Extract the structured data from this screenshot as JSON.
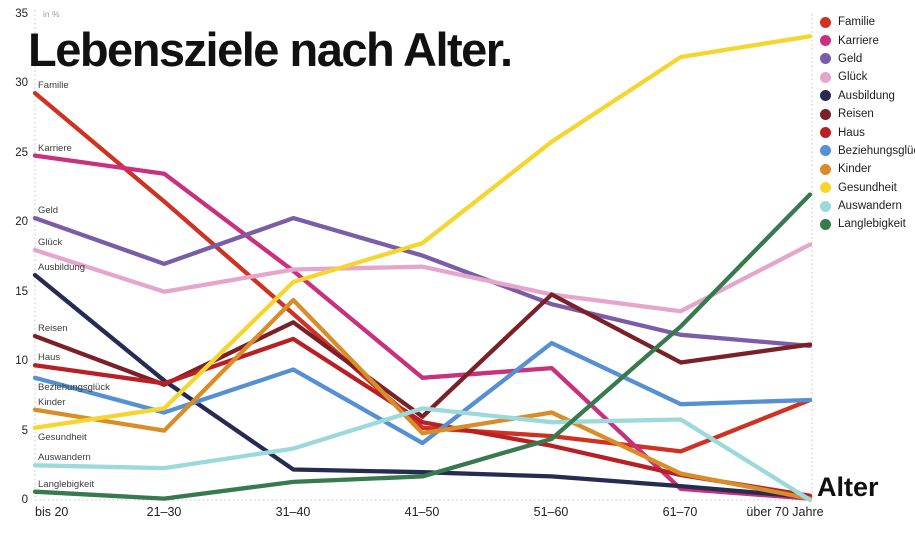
{
  "title": "Lebensziele nach Alter.",
  "y_axis": {
    "unit_label": "in %",
    "ticks": [
      0,
      5,
      10,
      15,
      20,
      25,
      30,
      35
    ]
  },
  "x_axis": {
    "title": "Alter"
  },
  "chart_data": {
    "type": "line",
    "title": "Lebensziele nach Alter.",
    "xlabel": "Alter",
    "ylabel": "in %",
    "ylim": [
      0,
      35
    ],
    "grid": false,
    "legend_position": "top-right",
    "categories": [
      "bis 20",
      "21–30",
      "31–40",
      "41–50",
      "51–60",
      "61–70",
      "über 70 Jahre"
    ],
    "series": [
      {
        "name": "Familie",
        "color": "#cf3123",
        "values": [
          29.3,
          21.5,
          13.4,
          5.2,
          4.6,
          3.5,
          7.2
        ]
      },
      {
        "name": "Karriere",
        "color": "#c9307e",
        "values": [
          24.8,
          23.5,
          16.5,
          8.8,
          9.5,
          0.8,
          0.1
        ]
      },
      {
        "name": "Geld",
        "color": "#7b5ca6",
        "values": [
          20.3,
          17.0,
          20.3,
          17.6,
          14.1,
          11.9,
          11.1
        ]
      },
      {
        "name": "Glück",
        "color": "#e6a6cc",
        "values": [
          18.0,
          15.0,
          16.6,
          16.8,
          14.8,
          13.6,
          18.4
        ]
      },
      {
        "name": "Ausbildung",
        "color": "#262b52",
        "values": [
          16.2,
          8.6,
          2.2,
          2.0,
          1.7,
          1.0,
          0.2
        ]
      },
      {
        "name": "Reisen",
        "color": "#7b2026",
        "values": [
          11.8,
          8.3,
          12.8,
          6.0,
          14.8,
          9.9,
          11.2
        ]
      },
      {
        "name": "Haus",
        "color": "#b92025",
        "values": [
          9.7,
          8.4,
          11.6,
          5.6,
          3.9,
          1.8,
          0.3
        ]
      },
      {
        "name": "Beziehungsglück",
        "color": "#5590d5",
        "values": [
          8.8,
          6.3,
          9.4,
          4.1,
          11.3,
          6.9,
          7.2
        ]
      },
      {
        "name": "Kinder",
        "color": "#d98d28",
        "values": [
          6.5,
          5.0,
          14.4,
          4.8,
          6.3,
          1.9,
          0.1
        ]
      },
      {
        "name": "Gesundheit",
        "color": "#f5d52e",
        "values": [
          5.2,
          6.6,
          15.7,
          18.5,
          25.8,
          31.9,
          33.4
        ]
      },
      {
        "name": "Auswandern",
        "color": "#9cd9dd",
        "values": [
          2.5,
          2.3,
          3.7,
          6.6,
          5.6,
          5.8,
          0.0
        ]
      },
      {
        "name": "Langlebigkeit",
        "color": "#377a4e",
        "values": [
          0.6,
          0.1,
          1.3,
          1.7,
          4.4,
          12.5,
          22.0
        ]
      }
    ]
  }
}
